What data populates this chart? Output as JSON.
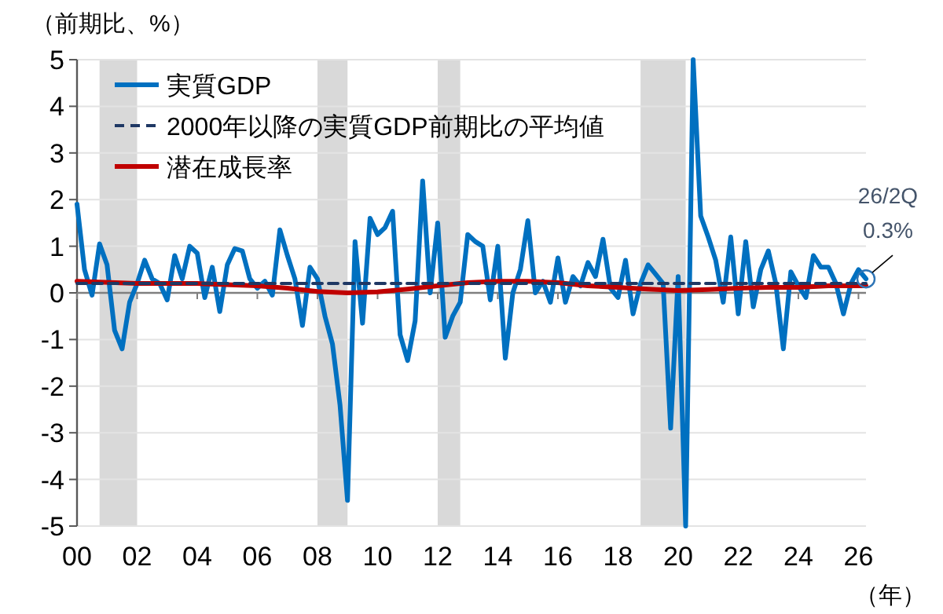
{
  "chart_data": {
    "type": "line",
    "ylabel": "（前期比、%）",
    "xlabel": "（年）",
    "xlim": [
      2000,
      2026.25
    ],
    "xticks": [
      {
        "value": 2000,
        "label": "00"
      },
      {
        "value": 2002,
        "label": "02"
      },
      {
        "value": 2004,
        "label": "04"
      },
      {
        "value": 2006,
        "label": "06"
      },
      {
        "value": 2008,
        "label": "08"
      },
      {
        "value": 2010,
        "label": "10"
      },
      {
        "value": 2012,
        "label": "12"
      },
      {
        "value": 2014,
        "label": "14"
      },
      {
        "value": 2016,
        "label": "16"
      },
      {
        "value": 2018,
        "label": "18"
      },
      {
        "value": 2020,
        "label": "20"
      },
      {
        "value": 2022,
        "label": "22"
      },
      {
        "value": 2024,
        "label": "24"
      },
      {
        "value": 2026,
        "label": "26"
      }
    ],
    "ylim": [
      -5,
      5
    ],
    "yticks": [
      -5,
      -4,
      -3,
      -2,
      -1,
      0,
      1,
      2,
      3,
      4,
      5
    ],
    "grid": "y",
    "legend": "top left",
    "bands": [
      {
        "axis": "x",
        "from": 2000.75,
        "to": 2002,
        "color": "#d9d9d9"
      },
      {
        "axis": "x",
        "from": 2008,
        "to": 2009,
        "color": "#d9d9d9"
      },
      {
        "axis": "x",
        "from": 2012,
        "to": 2012.75,
        "color": "#d9d9d9"
      },
      {
        "axis": "x",
        "from": 2018.75,
        "to": 2020.25,
        "color": "#d9d9d9"
      }
    ],
    "series": [
      {
        "name": "実質GDP",
        "color": "#0070c0",
        "line_style": "solid",
        "x": [
          2000,
          2000.25,
          2000.5,
          2000.75,
          2001,
          2001.25,
          2001.5,
          2001.75,
          2002,
          2002.25,
          2002.5,
          2002.75,
          2003,
          2003.25,
          2003.5,
          2003.75,
          2004,
          2004.25,
          2004.5,
          2004.75,
          2005,
          2005.25,
          2005.5,
          2005.75,
          2006,
          2006.25,
          2006.5,
          2006.75,
          2007,
          2007.25,
          2007.5,
          2007.75,
          2008,
          2008.25,
          2008.5,
          2008.75,
          2009,
          2009.25,
          2009.5,
          2009.75,
          2010,
          2010.25,
          2010.5,
          2010.75,
          2011,
          2011.25,
          2011.5,
          2011.75,
          2012,
          2012.25,
          2012.5,
          2012.75,
          2013,
          2013.25,
          2013.5,
          2013.75,
          2014,
          2014.25,
          2014.5,
          2014.75,
          2015,
          2015.25,
          2015.5,
          2015.75,
          2016,
          2016.25,
          2016.5,
          2016.75,
          2017,
          2017.25,
          2017.5,
          2017.75,
          2018,
          2018.25,
          2018.5,
          2018.75,
          2019,
          2019.25,
          2019.5,
          2019.75,
          2020,
          2020.25,
          2020.5,
          2020.75,
          2021,
          2021.25,
          2021.5,
          2021.75,
          2022,
          2022.25,
          2022.5,
          2022.75,
          2023,
          2023.25,
          2023.5,
          2023.75,
          2024,
          2024.25,
          2024.5,
          2024.75,
          2025,
          2025.25,
          2025.5,
          2025.75,
          2026,
          2026.25
        ],
        "values": [
          1.9,
          0.5,
          -0.05,
          1.05,
          0.6,
          -0.8,
          -1.2,
          -0.2,
          0.2,
          0.7,
          0.3,
          0.2,
          -0.15,
          0.8,
          0.3,
          1.0,
          0.85,
          -0.1,
          0.55,
          -0.4,
          0.6,
          0.95,
          0.9,
          0.3,
          0.1,
          0.25,
          -0.05,
          1.35,
          0.8,
          0.3,
          -0.7,
          0.55,
          0.3,
          -0.5,
          -1.1,
          -2.4,
          -4.45,
          1.1,
          -0.65,
          1.6,
          1.25,
          1.4,
          1.75,
          -0.9,
          -1.45,
          -0.6,
          2.4,
          0.0,
          1.5,
          -0.95,
          -0.5,
          -0.2,
          1.25,
          1.1,
          1.0,
          -0.15,
          1.0,
          -1.4,
          0.0,
          0.5,
          1.55,
          0.0,
          0.25,
          -0.2,
          0.75,
          -0.2,
          0.35,
          0.15,
          0.65,
          0.35,
          1.15,
          0.1,
          -0.1,
          0.7,
          -0.45,
          0.2,
          0.6,
          0.4,
          0.2,
          -2.9,
          0.35,
          -5,
          5,
          1.65,
          1.2,
          0.7,
          -0.2,
          1.2,
          -0.45,
          1.1,
          -0.3,
          0.5,
          0.9,
          0.2,
          -1.2,
          0.45,
          0.15,
          -0.1,
          0.8,
          0.55,
          0.55,
          0.2,
          -0.45,
          0.2,
          0.5,
          0.3
        ]
      },
      {
        "name": "2000年以降の実質GDP前期比の平均値",
        "color": "#1f3864",
        "line_style": "dashed",
        "x": [
          2000,
          2026.25
        ],
        "values": [
          0.2,
          0.2
        ]
      },
      {
        "name": "潜在成長率",
        "color": "#c00000",
        "line_style": "solid",
        "x": [
          2000,
          2002,
          2004,
          2006,
          2007,
          2008,
          2009,
          2010,
          2011,
          2012,
          2013,
          2014,
          2015,
          2016,
          2017,
          2018,
          2019,
          2020,
          2021,
          2022,
          2023,
          2024,
          2025,
          2026.25
        ],
        "values": [
          0.25,
          0.2,
          0.2,
          0.15,
          0.1,
          0.03,
          0.0,
          0.02,
          0.08,
          0.15,
          0.22,
          0.25,
          0.25,
          0.22,
          0.15,
          0.12,
          0.08,
          0.05,
          0.07,
          0.1,
          0.12,
          0.12,
          0.15,
          0.15
        ]
      }
    ],
    "annotations": [
      "26/2Q",
      {
        "text": "0.3%",
        "x": 2026.25,
        "y": 0.3
      }
    ]
  }
}
